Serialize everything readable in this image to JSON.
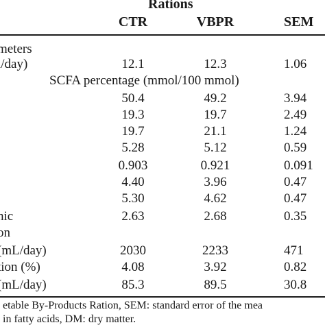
{
  "table": {
    "group_header": "Rations",
    "columns": [
      "CTR",
      "VBPR",
      "SEM"
    ],
    "rows": [
      {
        "label": "meters",
        "values": [
          "",
          "",
          ""
        ]
      },
      {
        "label": "l/day)",
        "values": [
          "12.1",
          "12.3",
          "1.06"
        ]
      },
      {
        "label": "SCFA percentage (mmol/100 mmol)",
        "values": [
          "",
          "",
          ""
        ]
      },
      {
        "label": "",
        "values": [
          "50.4",
          "49.2",
          "3.94"
        ]
      },
      {
        "label": "",
        "values": [
          "19.3",
          "19.7",
          "2.49"
        ]
      },
      {
        "label": "",
        "values": [
          "19.7",
          "21.1",
          "1.24"
        ]
      },
      {
        "label": "",
        "values": [
          "5.28",
          "5.12",
          "0.59"
        ]
      },
      {
        "label": "",
        "values": [
          "0.903",
          "0.921",
          "0.091"
        ]
      },
      {
        "label": "",
        "values": [
          "4.40",
          "3.96",
          "0.47"
        ]
      },
      {
        "label": "",
        "values": [
          "5.30",
          "4.62",
          "0.47"
        ]
      },
      {
        "label": "nic",
        "values": [
          "2.63",
          "2.68",
          "0.35"
        ]
      },
      {
        "label": "on",
        "values": [
          "",
          "",
          ""
        ]
      },
      {
        "label": "(mL/day)",
        "values": [
          "2030",
          "2233",
          "471"
        ]
      },
      {
        "label": "tion (%)",
        "values": [
          "4.08",
          "3.92",
          "0.82"
        ]
      },
      {
        "label": "(mL/day)",
        "values": [
          "85.3",
          "89.5",
          "30.8"
        ]
      }
    ],
    "footnote_lines": [
      "etable By-Products Ration, SEM: standard error of the mea",
      "in fatty acids, DM: dry matter."
    ]
  }
}
